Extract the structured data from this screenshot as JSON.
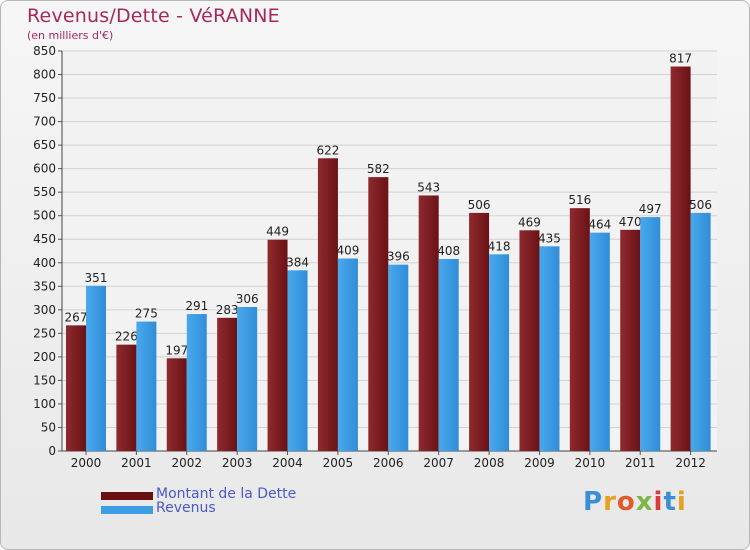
{
  "chart_data": {
    "type": "bar",
    "title": "Revenus/Dette - VéRANNE",
    "subtitle": "(en milliers d'€)",
    "categories": [
      "2000",
      "2001",
      "2002",
      "2003",
      "2004",
      "2005",
      "2006",
      "2007",
      "2008",
      "2009",
      "2010",
      "2011",
      "2012"
    ],
    "series": [
      {
        "name": "Montant de la Dette",
        "color": "#7a1e22",
        "values": [
          267,
          226,
          197,
          283,
          449,
          622,
          582,
          543,
          506,
          469,
          516,
          470,
          817
        ]
      },
      {
        "name": "Revenus",
        "color": "#3d9ee4",
        "values": [
          351,
          275,
          291,
          306,
          384,
          409,
          396,
          408,
          418,
          435,
          464,
          497,
          506
        ]
      }
    ],
    "ylim": [
      0,
      850
    ],
    "yticks": [
      0,
      50,
      100,
      150,
      200,
      250,
      300,
      350,
      400,
      450,
      500,
      550,
      600,
      650,
      700,
      750,
      800,
      850
    ],
    "grid": true,
    "legend_position": "bottom-left"
  },
  "legend": {
    "debt_label": "Montant de la Dette",
    "revenue_label": "Revenus",
    "debt_color": "#6a0f12",
    "revenue_color": "#3d9ee4",
    "label_color": "#4a5ac8"
  },
  "brand": {
    "text": "Proxiti",
    "letter_colors": [
      "#3a8ed8",
      "#e8a020",
      "#e05a2a",
      "#7ab648",
      "#d93b3b",
      "#3a8ed8",
      "#e8a020"
    ]
  }
}
